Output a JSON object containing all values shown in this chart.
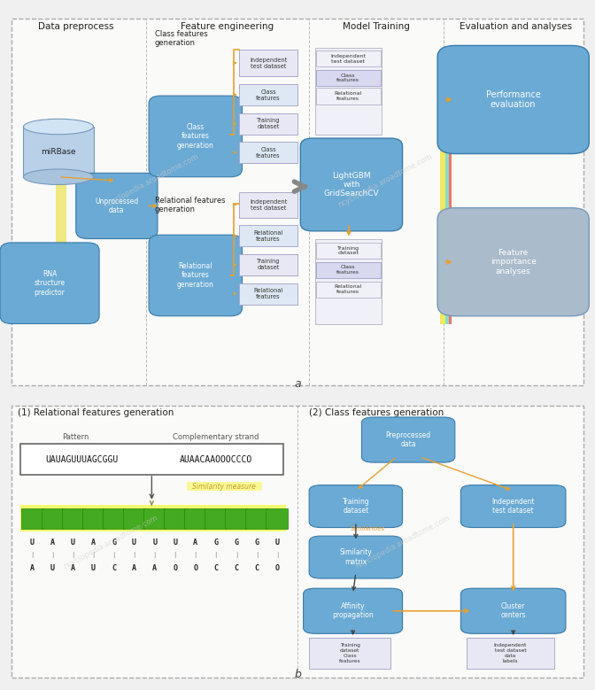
{
  "bg_color": "#f0f0f0",
  "panel_bg": "#f5f5f5",
  "col_headers": [
    "Data preprocess",
    "Feature engineering",
    "Model Training",
    "Evaluation and analyses"
  ],
  "blue_box_face": "#6aaad4",
  "blue_box_edge": "#3a7aaa",
  "light_purple_face": "#d8d8ee",
  "light_purple_edge": "#aaaacc",
  "white_box_face": "#ffffff",
  "white_box_edge": "#999999",
  "green_face": "#44aa22",
  "green_edge": "#228800",
  "yellow_face": "#f8f880",
  "orange_color": "#e8a030",
  "gray_color": "#888888",
  "dark_color": "#444444",
  "cyan_bar": "#88ddcc",
  "red_bar": "#ee6655",
  "label_a": "a",
  "label_b": "b"
}
